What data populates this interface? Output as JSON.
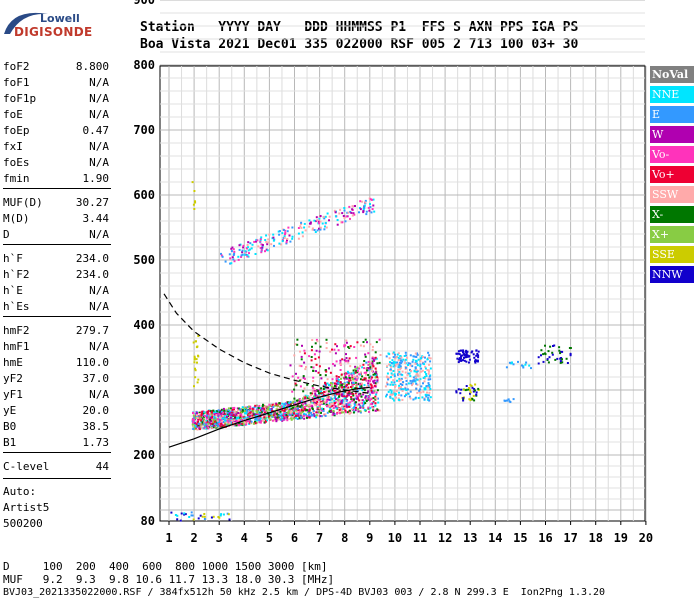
{
  "logo": {
    "top": "Lowell",
    "bottom": "DIGISONDE"
  },
  "header": {
    "line1": "Station   YYYY DAY   DDD HHMMSS P1  FFS S AXN PPS IGA PS",
    "line2": "Boa Vista 2021 Dec01 335 022000 RSF 005 2 713 100 03+ 30"
  },
  "params": [
    {
      "k": "foF2",
      "v": "8.800"
    },
    {
      "k": "foF1",
      "v": "N/A"
    },
    {
      "k": "foF1p",
      "v": "N/A"
    },
    {
      "k": "foE",
      "v": "N/A"
    },
    {
      "k": "foEp",
      "v": "0.47"
    },
    {
      "k": "fxI",
      "v": "N/A"
    },
    {
      "k": "foEs",
      "v": "N/A"
    },
    {
      "k": "fmin",
      "v": "1.90"
    },
    {
      "k": "MUF(D)",
      "v": "30.27"
    },
    {
      "k": "M(D)",
      "v": "3.44"
    },
    {
      "k": "D",
      "v": "N/A"
    },
    {
      "k": "h`F",
      "v": "234.0"
    },
    {
      "k": "h`F2",
      "v": "234.0"
    },
    {
      "k": "h`E",
      "v": "N/A"
    },
    {
      "k": "h`Es",
      "v": "N/A"
    },
    {
      "k": "hmF2",
      "v": "279.7"
    },
    {
      "k": "hmF1",
      "v": "N/A"
    },
    {
      "k": "hmE",
      "v": "110.0"
    },
    {
      "k": "yF2",
      "v": "37.0"
    },
    {
      "k": "yF1",
      "v": "N/A"
    },
    {
      "k": "yE",
      "v": "20.0"
    },
    {
      "k": "B0",
      "v": "38.5"
    },
    {
      "k": "B1",
      "v": "1.73"
    },
    {
      "k": "C-level",
      "v": "44"
    }
  ],
  "auto": {
    "l1": "Auto:",
    "l2": "Artist5",
    "l3": "500200"
  },
  "footer": {
    "d_row": "D     100  200  400  600  800 1000 1500 3000 [km]",
    "muf_row": "MUF   9.2  9.3  9.8 10.6 11.7 13.3 18.0 30.3 [MHz]",
    "info": "BVJ03_2021335022000.RSF / 384fx512h 50 kHz 2.5 km / DPS-4D BVJ03 003 / 2.8 N 299.3 E  Ion2Png 1.3.20"
  },
  "legend": [
    {
      "label": "NoVal",
      "color": "#808080"
    },
    {
      "label": "NNE",
      "color": "#00e5ff"
    },
    {
      "label": "E",
      "color": "#3399ff"
    },
    {
      "label": "W",
      "color": "#b000b0"
    },
    {
      "label": "Vo-",
      "color": "#ff33bb"
    },
    {
      "label": "Vo+",
      "color": "#ee0033"
    },
    {
      "label": "SSW",
      "color": "#ffaaaa"
    },
    {
      "label": "X-",
      "color": "#007700"
    },
    {
      "label": "X+",
      "color": "#88cc44"
    },
    {
      "label": "SSE",
      "color": "#cccc00"
    },
    {
      "label": "NNW",
      "color": "#1100cc"
    }
  ],
  "chart_data": {
    "type": "scatter",
    "xlabel": "",
    "ylabel": "",
    "xlim": [
      0.8,
      20
    ],
    "ylim": [
      80,
      900
    ],
    "x_ticks": [
      1,
      2,
      3,
      4,
      5,
      6,
      7,
      8,
      9,
      10,
      11,
      12,
      13,
      14,
      15,
      16,
      17,
      18,
      19,
      20
    ],
    "y_ticks": [
      80,
      200,
      300,
      400,
      500,
      600,
      700,
      800,
      900
    ],
    "grid": true,
    "legend_position": "right",
    "profile_curve": [
      [
        1.0,
        212
      ],
      [
        2,
        225
      ],
      [
        3,
        240
      ],
      [
        4,
        253
      ],
      [
        5,
        265
      ],
      [
        6,
        277
      ],
      [
        7,
        289
      ],
      [
        7.8,
        297
      ],
      [
        8.5,
        302
      ],
      [
        9.0,
        304
      ]
    ],
    "dashed_curve": [
      [
        0.8,
        448
      ],
      [
        1.3,
        418
      ],
      [
        2,
        390
      ],
      [
        3,
        363
      ],
      [
        4,
        342
      ],
      [
        5,
        326
      ],
      [
        6,
        315
      ],
      [
        7,
        306
      ],
      [
        8,
        300
      ],
      [
        9.0,
        295
      ]
    ],
    "clusters": [
      {
        "name": "F2 trace",
        "type": "scatter",
        "x_range": [
          1.9,
          9.3
        ],
        "y_base": [
          242,
          282
        ],
        "colors": [
          "Vo+",
          "W",
          "Vo-",
          "E",
          "NNE",
          "X+",
          "X-",
          "SSW"
        ]
      },
      {
        "name": "Multihop trace",
        "type": "scatter",
        "x_range": [
          3.0,
          9.2
        ],
        "y_range": [
          490,
          610
        ],
        "colors": [
          "W",
          "Vo-",
          "E",
          "NNE",
          "SSW"
        ]
      },
      {
        "name": "Oblique SSW",
        "type": "scatter",
        "x_range": [
          9.6,
          11.4
        ],
        "y_range": [
          280,
          360
        ],
        "colors": [
          "SSW",
          "E",
          "NNE"
        ]
      },
      {
        "name": "Oblique NNW",
        "type": "scatter",
        "x_range": [
          12.3,
          17
        ],
        "y_range": [
          330,
          370
        ],
        "colors": [
          "NNW",
          "SSE",
          "X-"
        ]
      },
      {
        "name": "Low echoes",
        "type": "scatter",
        "x_range": [
          1.0,
          3.4
        ],
        "y_range": [
          80,
          100
        ],
        "colors": [
          "E",
          "NNE",
          "NNW",
          "SSE"
        ]
      }
    ]
  }
}
